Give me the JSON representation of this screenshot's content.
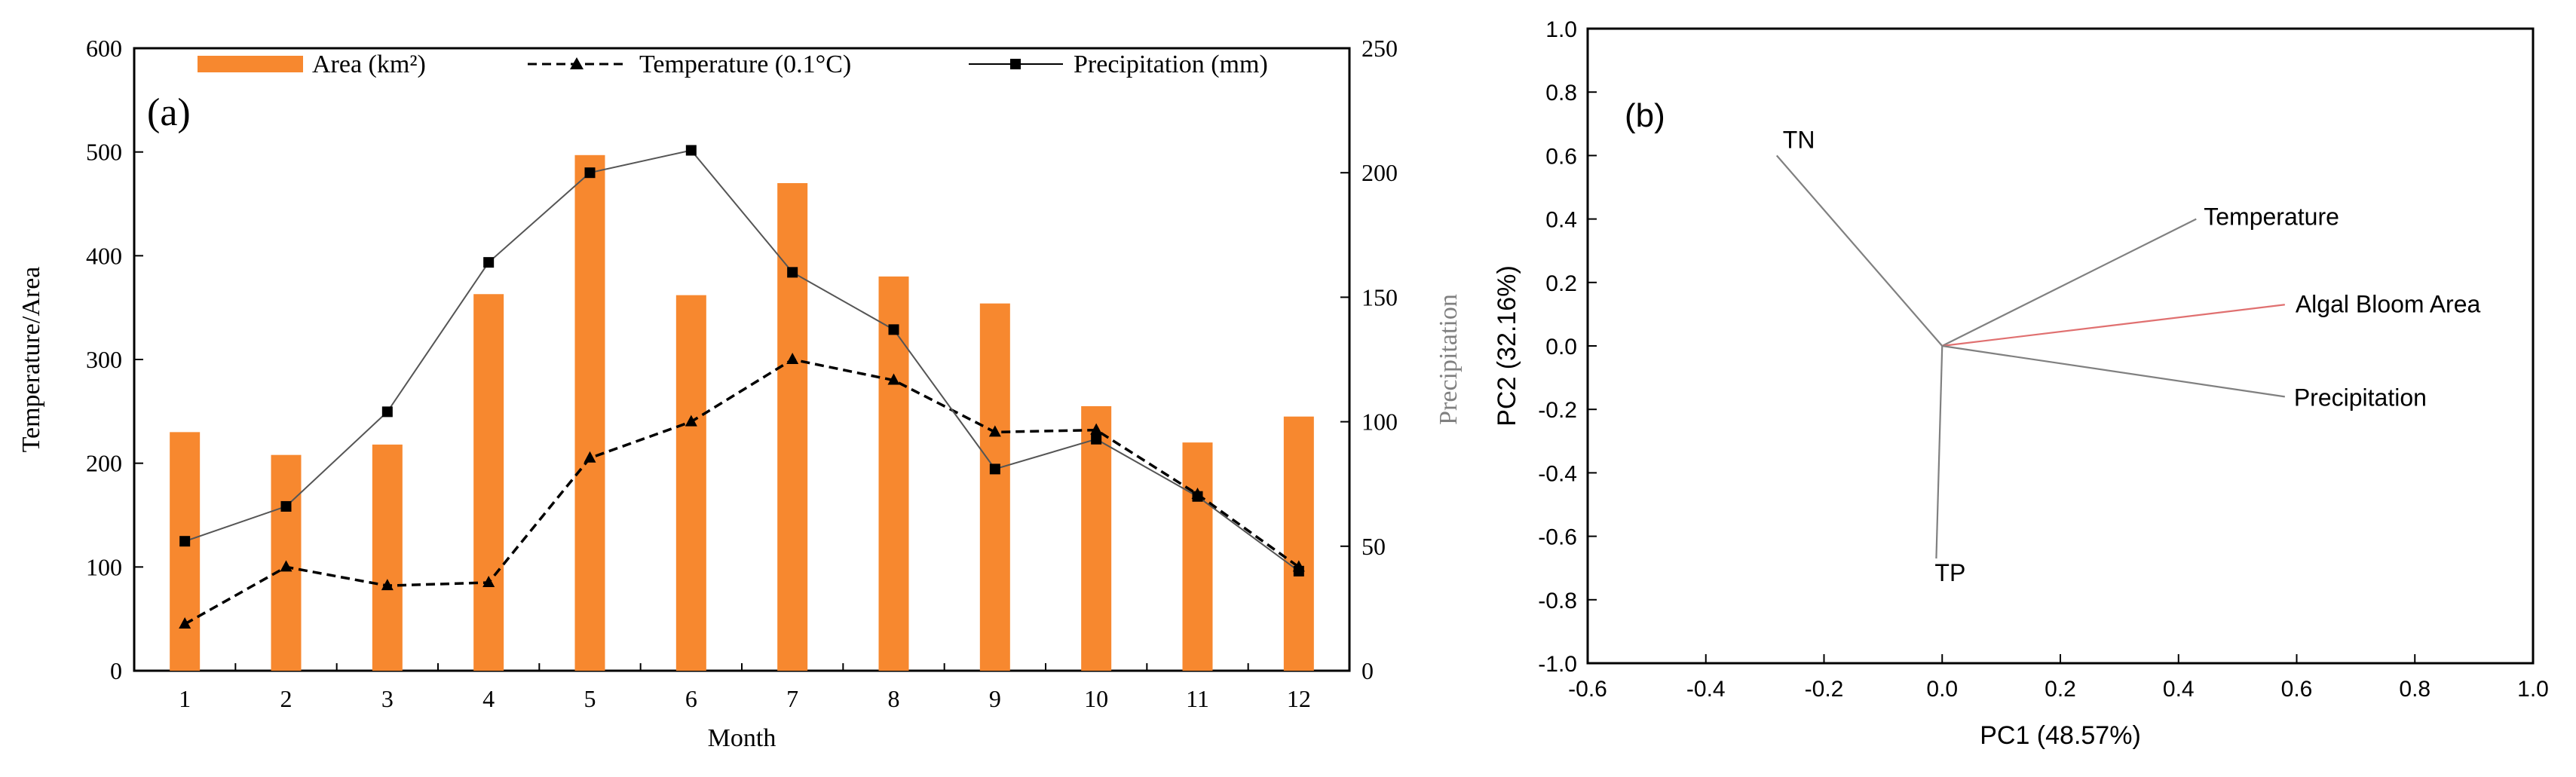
{
  "chart_data": [
    {
      "panel_label": "(a)",
      "type": "bar+line",
      "xlabel": "Month",
      "ylabel": "Temperature/Area",
      "y2label": "Precipitation",
      "ylim": [
        0,
        600
      ],
      "y2lim": [
        0,
        250
      ],
      "yticks": [
        "0",
        "100",
        "200",
        "300",
        "400",
        "500",
        "600"
      ],
      "y2ticks": [
        "0",
        "50",
        "100",
        "150",
        "200",
        "250"
      ],
      "categories": [
        "1",
        "2",
        "3",
        "4",
        "5",
        "6",
        "7",
        "8",
        "9",
        "10",
        "11",
        "12"
      ],
      "legend_position": "top",
      "series": [
        {
          "name": "Area (km²)",
          "kind": "bar",
          "axis": "left",
          "color": "#F7882F",
          "values": [
            230,
            208,
            218,
            363,
            497,
            362,
            470,
            380,
            354,
            255,
            220,
            245
          ]
        },
        {
          "name": "Temperature (0.1°C)",
          "kind": "line",
          "axis": "left",
          "dash": "dashed",
          "marker": "triangle",
          "color": "#000000",
          "values": [
            45,
            100,
            82,
            85,
            205,
            240,
            300,
            280,
            230,
            232,
            170,
            100
          ]
        },
        {
          "name": "Precipitation (mm)",
          "kind": "line",
          "axis": "right",
          "dash": "solid",
          "marker": "square",
          "color": "#000000",
          "values": [
            52,
            66,
            104,
            164,
            200,
            209,
            160,
            137,
            81,
            93,
            70,
            40
          ]
        }
      ]
    },
    {
      "panel_label": "(b)",
      "type": "biplot",
      "xlabel": "PC1 (48.57%)",
      "ylabel": "PC2 (32.16%)",
      "xlim": [
        -0.6,
        1.0
      ],
      "ylim": [
        -1.0,
        1.0
      ],
      "xticks": [
        "-0.6",
        "-0.4",
        "-0.2",
        "0.0",
        "0.2",
        "0.4",
        "0.6",
        "0.8",
        "1.0"
      ],
      "yticks": [
        "-1.0",
        "-0.8",
        "-0.6",
        "-0.4",
        "-0.2",
        "0.0",
        "0.2",
        "0.4",
        "0.6",
        "0.8",
        "1.0"
      ],
      "vectors": [
        {
          "name": "TN",
          "x": -0.28,
          "y": 0.6,
          "color": "#808080"
        },
        {
          "name": "Temperature",
          "x": 0.43,
          "y": 0.4,
          "color": "#808080"
        },
        {
          "name": "Algal Bloom Area",
          "x": 0.58,
          "y": 0.13,
          "color": "#E07070"
        },
        {
          "name": "Precipitation",
          "x": 0.58,
          "y": -0.16,
          "color": "#808080"
        },
        {
          "name": "TP",
          "x": -0.01,
          "y": -0.67,
          "color": "#808080"
        }
      ]
    }
  ]
}
